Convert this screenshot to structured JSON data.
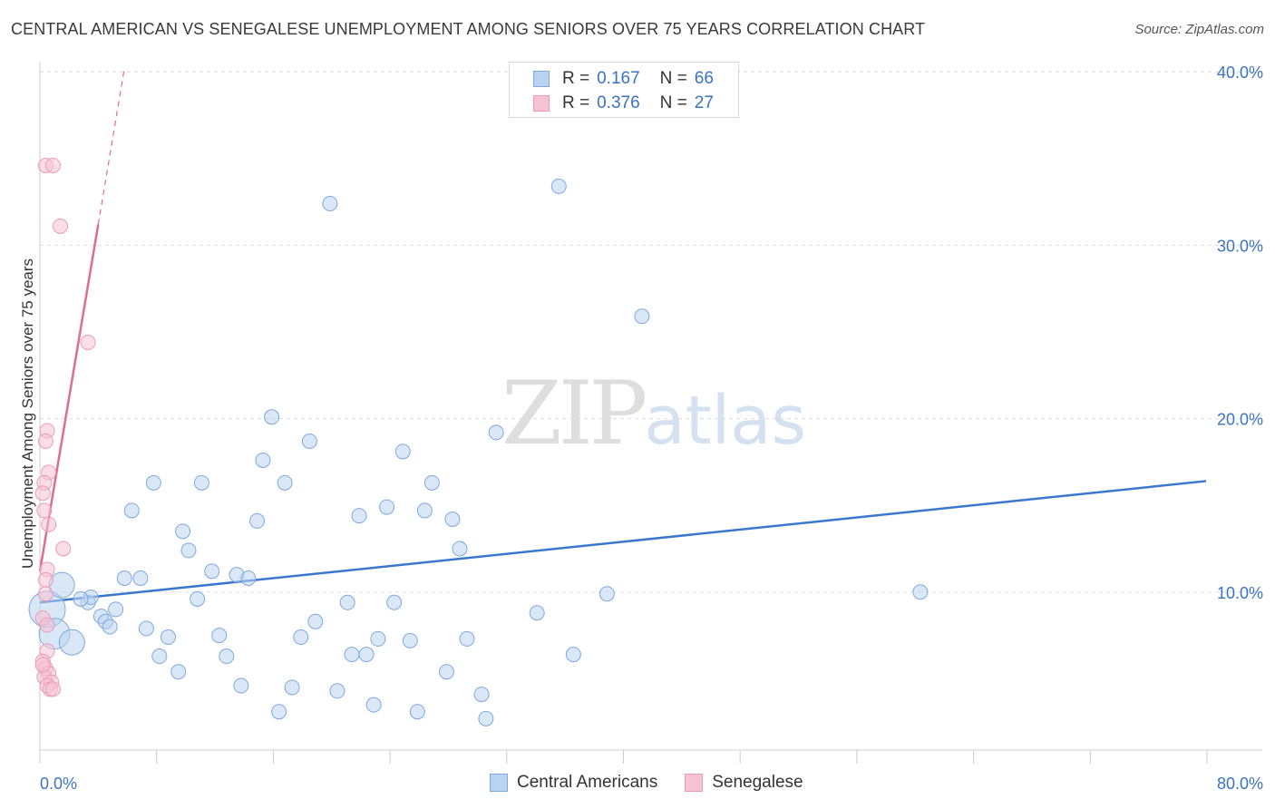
{
  "title": "CENTRAL AMERICAN VS SENEGALESE UNEMPLOYMENT AMONG SENIORS OVER 75 YEARS CORRELATION CHART",
  "source": "Source: ZipAtlas.com",
  "watermark": {
    "zip": "ZIP",
    "atlas": "atlas"
  },
  "colors": {
    "blue": "#3a78d0",
    "blue_fill": "#b9d3f1",
    "blue_stroke": "#7fa9dd",
    "pink": "#e06b95",
    "pink_fill": "#f6c3d3",
    "pink_stroke": "#ec9bb5",
    "grid": "#dddddd",
    "axis_label": "#3b73c4"
  },
  "legend": {
    "rows": [
      {
        "r_label": "R =",
        "r_value": "0.167",
        "n_label": "N =",
        "n_value": "66"
      },
      {
        "r_label": "R =",
        "r_value": "0.376",
        "n_label": "N =",
        "n_value": "27"
      }
    ]
  },
  "bottom_legend": [
    "Central Americans",
    "Senegalese"
  ],
  "chart_data": {
    "type": "scatter",
    "title": "CENTRAL AMERICAN VS SENEGALESE UNEMPLOYMENT AMONG SENIORS OVER 75 YEARS CORRELATION CHART",
    "xlabel": "",
    "ylabel": "Unemployment Among Seniors over 75 years",
    "xlim": [
      0,
      80
    ],
    "ylim": [
      0,
      41
    ],
    "x_tick_labels": [
      "0.0%",
      "80.0%"
    ],
    "y_ticks": [
      10,
      20,
      30,
      40
    ],
    "y_tick_labels": [
      "10.0%",
      "20.0%",
      "30.0%",
      "40.0%"
    ],
    "grid": true,
    "series": [
      {
        "name": "Central Americans",
        "trend": {
          "x": [
            0,
            80
          ],
          "y": [
            9.4,
            16.4
          ]
        },
        "points": [
          [
            0.5,
            9.0,
            3
          ],
          [
            1.0,
            7.6,
            2.5
          ],
          [
            1.5,
            10.4,
            2
          ],
          [
            2.2,
            7.1,
            2
          ],
          [
            3.3,
            9.4,
            1
          ],
          [
            3.5,
            9.7,
            1
          ],
          [
            4.2,
            8.6,
            1
          ],
          [
            4.5,
            8.3,
            1
          ],
          [
            4.8,
            8.0,
            1
          ],
          [
            5.2,
            9.0,
            1
          ],
          [
            5.8,
            10.8,
            1
          ],
          [
            6.3,
            14.7,
            1
          ],
          [
            6.9,
            10.8,
            1
          ],
          [
            7.3,
            7.9,
            1
          ],
          [
            7.8,
            16.3,
            1
          ],
          [
            8.2,
            6.3,
            1
          ],
          [
            8.8,
            7.4,
            1
          ],
          [
            9.5,
            5.4,
            1
          ],
          [
            9.8,
            13.5,
            1
          ],
          [
            10.2,
            12.4,
            1
          ],
          [
            10.8,
            9.6,
            1
          ],
          [
            11.1,
            16.3,
            1
          ],
          [
            11.8,
            11.2,
            1
          ],
          [
            12.3,
            7.5,
            1
          ],
          [
            12.8,
            6.3,
            1
          ],
          [
            13.5,
            11.0,
            1
          ],
          [
            13.8,
            4.6,
            1
          ],
          [
            14.3,
            10.8,
            1
          ],
          [
            14.9,
            14.1,
            1
          ],
          [
            15.3,
            17.6,
            1
          ],
          [
            15.9,
            20.1,
            1
          ],
          [
            16.4,
            3.1,
            1
          ],
          [
            16.8,
            16.3,
            1
          ],
          [
            17.3,
            4.5,
            1
          ],
          [
            17.9,
            7.4,
            1
          ],
          [
            18.5,
            18.7,
            1
          ],
          [
            18.9,
            8.3,
            1
          ],
          [
            19.9,
            32.4,
            1
          ],
          [
            20.4,
            4.3,
            1
          ],
          [
            21.1,
            9.4,
            1
          ],
          [
            21.4,
            6.4,
            1
          ],
          [
            21.9,
            14.4,
            1
          ],
          [
            22.4,
            6.4,
            1
          ],
          [
            22.9,
            3.5,
            1
          ],
          [
            23.2,
            7.3,
            1
          ],
          [
            23.8,
            14.9,
            1
          ],
          [
            24.3,
            9.4,
            1
          ],
          [
            24.9,
            18.1,
            1
          ],
          [
            25.4,
            7.2,
            1
          ],
          [
            25.9,
            3.1,
            1
          ],
          [
            26.4,
            14.7,
            1
          ],
          [
            26.9,
            16.3,
            1
          ],
          [
            27.9,
            5.4,
            1
          ],
          [
            28.3,
            14.2,
            1
          ],
          [
            28.8,
            12.5,
            1
          ],
          [
            29.3,
            7.3,
            1
          ],
          [
            30.3,
            4.1,
            1
          ],
          [
            30.6,
            2.7,
            1
          ],
          [
            31.3,
            19.2,
            1
          ],
          [
            34.1,
            8.8,
            1
          ],
          [
            35.6,
            33.4,
            1
          ],
          [
            36.6,
            6.4,
            1
          ],
          [
            38.9,
            9.9,
            1
          ],
          [
            41.3,
            25.9,
            1
          ],
          [
            60.4,
            10.0,
            1
          ],
          [
            2.8,
            9.6,
            1
          ]
        ]
      },
      {
        "name": "Senegalese",
        "trend": {
          "x": [
            0,
            4.0
          ],
          "y": [
            11.2,
            31.2
          ]
        },
        "trend_dashed": {
          "x": [
            4.0,
            5.8
          ],
          "y": [
            31.2,
            40.2
          ]
        },
        "points": [
          [
            0.4,
            34.6,
            1
          ],
          [
            0.9,
            34.6,
            1
          ],
          [
            1.4,
            31.1,
            1
          ],
          [
            3.3,
            24.4,
            1
          ],
          [
            0.5,
            19.3,
            1
          ],
          [
            0.4,
            18.7,
            1
          ],
          [
            0.6,
            16.9,
            1
          ],
          [
            0.3,
            16.3,
            1
          ],
          [
            0.2,
            15.7,
            1
          ],
          [
            0.3,
            14.7,
            1
          ],
          [
            0.6,
            13.9,
            1
          ],
          [
            1.6,
            12.5,
            1
          ],
          [
            0.5,
            11.3,
            1
          ],
          [
            0.4,
            10.7,
            1
          ],
          [
            0.2,
            8.5,
            1
          ],
          [
            0.5,
            8.1,
            1
          ],
          [
            0.5,
            6.6,
            1
          ],
          [
            0.2,
            6.0,
            1
          ],
          [
            0.4,
            5.6,
            1
          ],
          [
            0.6,
            5.3,
            1
          ],
          [
            0.3,
            5.1,
            1
          ],
          [
            0.8,
            4.8,
            1
          ],
          [
            0.5,
            4.6,
            1
          ],
          [
            0.7,
            4.4,
            1
          ],
          [
            0.9,
            4.4,
            1
          ],
          [
            0.2,
            5.8,
            1
          ],
          [
            0.4,
            9.9,
            1
          ]
        ]
      }
    ]
  }
}
